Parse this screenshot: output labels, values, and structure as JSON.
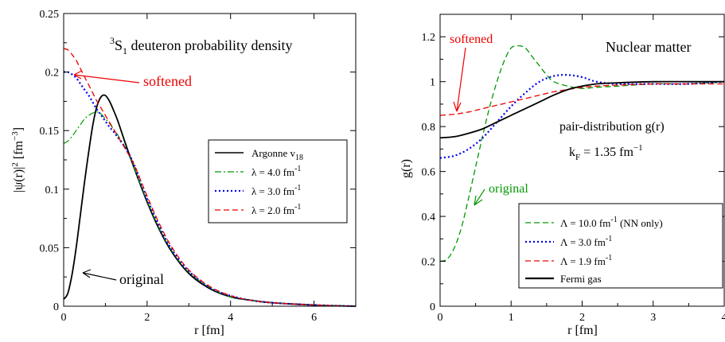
{
  "chart_data": [
    {
      "type": "line",
      "title": "³S₁ deuteron probability density",
      "xlabel": "r [fm]",
      "ylabel": "|ψ(r)|² [fm⁻³]",
      "xlim": [
        0,
        7
      ],
      "ylim": [
        0,
        0.25
      ],
      "xticks": [
        0,
        2,
        4,
        6
      ],
      "yticks": [
        0,
        0.05,
        0.1,
        0.15,
        0.2,
        0.25
      ],
      "legend_position": "center-right",
      "series": [
        {
          "name": "Argonne v18",
          "color": "#000000",
          "style": "solid",
          "x": [
            0,
            0.1,
            0.2,
            0.3,
            0.4,
            0.5,
            0.6,
            0.7,
            0.8,
            0.9,
            1.0,
            1.1,
            1.2,
            1.3,
            1.5,
            1.7,
            2.0,
            2.3,
            2.6,
            3.0,
            3.5,
            4.0,
            4.5,
            5.0,
            6.0,
            7.0
          ],
          "y": [
            0.006,
            0.011,
            0.027,
            0.05,
            0.078,
            0.106,
            0.132,
            0.155,
            0.171,
            0.179,
            0.18,
            0.175,
            0.167,
            0.158,
            0.137,
            0.117,
            0.089,
            0.065,
            0.046,
            0.028,
            0.015,
            0.008,
            0.005,
            0.003,
            0.001,
            0.0
          ]
        },
        {
          "name": "λ = 4.0 fm⁻¹",
          "color": "#009900",
          "style": "dashdot",
          "x": [
            0,
            0.1,
            0.2,
            0.3,
            0.4,
            0.5,
            0.6,
            0.7,
            0.8,
            0.9,
            1.0,
            1.1,
            1.2,
            1.3,
            1.5,
            1.7,
            2.0,
            2.3,
            2.6,
            3.0,
            3.5,
            4.0,
            4.5,
            5.0,
            6.0,
            7.0
          ],
          "y": [
            0.139,
            0.141,
            0.145,
            0.15,
            0.155,
            0.16,
            0.163,
            0.165,
            0.166,
            0.164,
            0.16,
            0.156,
            0.151,
            0.146,
            0.134,
            0.117,
            0.09,
            0.066,
            0.047,
            0.029,
            0.016,
            0.008,
            0.005,
            0.003,
            0.001,
            0.0
          ]
        },
        {
          "name": "λ = 3.0 fm⁻¹",
          "color": "#0000ee",
          "style": "dotted",
          "x": [
            0,
            0.1,
            0.2,
            0.3,
            0.4,
            0.5,
            0.6,
            0.7,
            0.8,
            0.9,
            1.0,
            1.1,
            1.2,
            1.3,
            1.5,
            1.7,
            2.0,
            2.3,
            2.6,
            3.0,
            3.5,
            4.0,
            4.5,
            5.0,
            6.0,
            7.0
          ],
          "y": [
            0.2,
            0.2,
            0.198,
            0.195,
            0.19,
            0.185,
            0.18,
            0.174,
            0.168,
            0.163,
            0.158,
            0.153,
            0.149,
            0.144,
            0.134,
            0.12,
            0.092,
            0.068,
            0.048,
            0.03,
            0.016,
            0.009,
            0.005,
            0.003,
            0.001,
            0.0
          ]
        },
        {
          "name": "λ = 2.0 fm⁻¹",
          "color": "#ee0000",
          "style": "dashed",
          "x": [
            0,
            0.1,
            0.2,
            0.3,
            0.4,
            0.5,
            0.6,
            0.7,
            0.8,
            0.9,
            1.0,
            1.1,
            1.2,
            1.3,
            1.5,
            1.7,
            2.0,
            2.3,
            2.6,
            3.0,
            3.5,
            4.0,
            4.5,
            5.0,
            6.0,
            7.0
          ],
          "y": [
            0.22,
            0.219,
            0.215,
            0.21,
            0.203,
            0.196,
            0.189,
            0.182,
            0.175,
            0.169,
            0.163,
            0.157,
            0.151,
            0.145,
            0.133,
            0.12,
            0.094,
            0.07,
            0.05,
            0.031,
            0.017,
            0.009,
            0.005,
            0.003,
            0.001,
            0.0
          ]
        }
      ],
      "annotations": [
        {
          "text": "softened",
          "color": "#ee0000"
        },
        {
          "text": "original",
          "color": "#000000"
        }
      ]
    },
    {
      "type": "line",
      "title": "Nuclear matter",
      "subtitle": "pair-distribution g(r)",
      "note": "kF = 1.35 fm⁻¹",
      "xlabel": "r [fm]",
      "ylabel": "g(r)",
      "xlim": [
        0,
        4
      ],
      "ylim": [
        0,
        1.3
      ],
      "xticks": [
        0,
        1,
        2,
        3,
        4
      ],
      "yticks": [
        0,
        0.2,
        0.4,
        0.6,
        0.8,
        1,
        1.2
      ],
      "legend_position": "bottom-right",
      "series": [
        {
          "name": "Λ = 10.0 fm⁻¹ (NN only)",
          "color": "#009900",
          "style": "dashed",
          "x": [
            0,
            0.1,
            0.2,
            0.3,
            0.4,
            0.5,
            0.6,
            0.7,
            0.8,
            0.9,
            1.0,
            1.1,
            1.2,
            1.3,
            1.4,
            1.5,
            1.6,
            1.8,
            2.0,
            2.2,
            2.5,
            3.0,
            3.5,
            4.0
          ],
          "y": [
            0.2,
            0.21,
            0.26,
            0.35,
            0.48,
            0.62,
            0.76,
            0.89,
            1.0,
            1.09,
            1.15,
            1.16,
            1.15,
            1.11,
            1.07,
            1.03,
            1.0,
            0.98,
            0.97,
            0.975,
            0.98,
            0.99,
            0.99,
            1.0
          ]
        },
        {
          "name": "Λ = 3.0 fm⁻¹",
          "color": "#0000ee",
          "style": "dotted",
          "x": [
            0,
            0.2,
            0.4,
            0.6,
            0.8,
            1.0,
            1.2,
            1.4,
            1.6,
            1.8,
            2.0,
            2.2,
            2.5,
            3.0,
            3.5,
            4.0
          ],
          "y": [
            0.66,
            0.67,
            0.7,
            0.75,
            0.82,
            0.89,
            0.95,
            1.0,
            1.025,
            1.03,
            1.02,
            1.0,
            0.99,
            0.99,
            0.99,
            1.0
          ]
        },
        {
          "name": "Λ = 1.9 fm⁻¹",
          "color": "#ee0000",
          "style": "dashed",
          "x": [
            0,
            0.2,
            0.4,
            0.6,
            0.8,
            1.0,
            1.2,
            1.4,
            1.6,
            1.8,
            2.0,
            2.2,
            2.5,
            3.0,
            3.5,
            4.0
          ],
          "y": [
            0.85,
            0.855,
            0.865,
            0.88,
            0.895,
            0.91,
            0.925,
            0.94,
            0.955,
            0.965,
            0.975,
            0.98,
            0.985,
            0.99,
            0.99,
            0.99
          ]
        },
        {
          "name": "Fermi gas",
          "color": "#000000",
          "style": "solid",
          "x": [
            0,
            0.2,
            0.4,
            0.6,
            0.8,
            1.0,
            1.2,
            1.4,
            1.6,
            1.8,
            2.0,
            2.2,
            2.5,
            3.0,
            3.5,
            4.0
          ],
          "y": [
            0.75,
            0.755,
            0.77,
            0.79,
            0.82,
            0.85,
            0.88,
            0.91,
            0.94,
            0.965,
            0.98,
            0.99,
            0.995,
            1.0,
            1.0,
            1.0
          ]
        }
      ],
      "annotations": [
        {
          "text": "softened",
          "color": "#ee0000"
        },
        {
          "text": "original",
          "color": "#009900"
        }
      ]
    }
  ]
}
